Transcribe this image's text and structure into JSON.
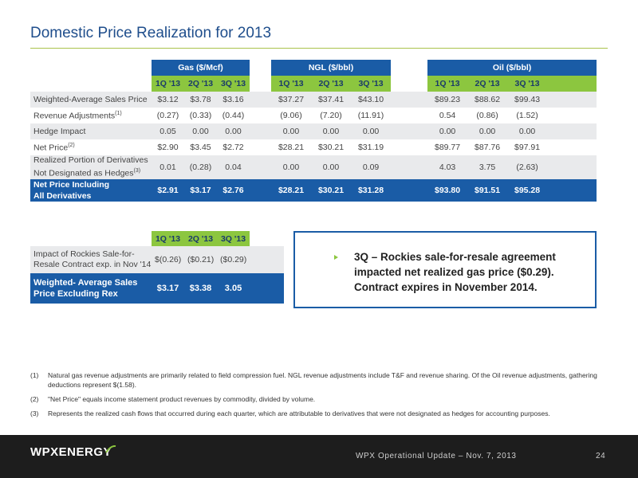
{
  "title": "Domestic Price Realization for 2013",
  "main_table": {
    "groups": [
      "Gas ($/Mcf)",
      "NGL ($/bbl)",
      "Oil ($/bbl)"
    ],
    "quarters": [
      "1Q '13",
      "2Q '13",
      "3Q '13"
    ],
    "rows": [
      {
        "label": "Weighted-Average Sales Price",
        "sup": "",
        "gas": [
          "$3.12",
          "$3.78",
          "$3.16"
        ],
        "ngl": [
          "$37.27",
          "$37.41",
          "$43.10"
        ],
        "oil": [
          "$89.23",
          "$88.62",
          "$99.43"
        ]
      },
      {
        "label": "Revenue Adjustments",
        "sup": "(1)",
        "gas": [
          "(0.27)",
          "(0.33)",
          "(0.44)"
        ],
        "ngl": [
          "(9.06)",
          "(7.20)",
          "(11.91)"
        ],
        "oil": [
          "0.54",
          "(0.86)",
          "(1.52)"
        ]
      },
      {
        "label": "Hedge Impact",
        "sup": "",
        "gas": [
          "0.05",
          "0.00",
          "0.00"
        ],
        "ngl": [
          "0.00",
          "0.00",
          "0.00"
        ],
        "oil": [
          "0.00",
          "0.00",
          "0.00"
        ]
      },
      {
        "label": "Net Price",
        "sup": "(2)",
        "gas": [
          "$2.90",
          "$3.45",
          "$2.72"
        ],
        "ngl": [
          "$28.21",
          "$30.21",
          "$31.19"
        ],
        "oil": [
          "$89.77",
          "$87.76",
          "$97.91"
        ]
      },
      {
        "label_line1": "Realized Portion of Derivatives",
        "label_line2": "Not Designated as Hedges",
        "sup": "(3)",
        "gas": [
          "0.01",
          "(0.28)",
          "0.04"
        ],
        "ngl": [
          "0.00",
          "0.00",
          "0.09"
        ],
        "oil": [
          "4.03",
          "3.75",
          "(2.63)"
        ]
      }
    ],
    "net_row": {
      "label_line1": "Net Price Including",
      "label_line2": "All Derivatives",
      "gas": [
        "$2.91",
        "$3.17",
        "$2.76"
      ],
      "ngl": [
        "$28.21",
        "$30.21",
        "$31.28"
      ],
      "oil": [
        "$93.80",
        "$91.51",
        "$95.28"
      ]
    }
  },
  "sub_table": {
    "quarters": [
      "1Q '13",
      "2Q '13",
      "3Q '13"
    ],
    "impact_row": {
      "label_line1": "Impact of Rockies Sale-for-",
      "label_line2": "Resale Contract exp. in Nov '14",
      "values": [
        "$(0.26)",
        "($0.21)",
        "($0.29)"
      ]
    },
    "weighted_row": {
      "label_line1": "Weighted- Average Sales",
      "label_line2": "Price Excluding Rex",
      "values": [
        "$3.17",
        "$3.38",
        "3.05"
      ]
    }
  },
  "callout": {
    "text": "3Q – Rockies sale-for-resale agreement impacted net realized gas price ($0.29). Contract expires in November 2014."
  },
  "footnotes": [
    {
      "num": "(1)",
      "text": "Natural gas revenue adjustments are primarily related to field compression fuel. NGL revenue adjustments include T&F and revenue sharing. Of the Oil revenue adjustments, gathering deductions represent $(1.58)."
    },
    {
      "num": "(2)",
      "text": "\"Net Price\" equals income statement product revenues by commodity, divided by volume."
    },
    {
      "num": "(3)",
      "text": "Represents the realized cash flows that occurred during each quarter, which are attributable to derivatives that were not designated as hedges for accounting purposes."
    }
  ],
  "footer": {
    "logo_text": "WPXENERGY",
    "caption": "WPX Operational Update – Nov. 7, 2013",
    "page_number": "24"
  },
  "colors": {
    "brand_blue": "#1a5ca6",
    "brand_green": "#8cc63f",
    "footer_bg": "#1d1d1d"
  }
}
